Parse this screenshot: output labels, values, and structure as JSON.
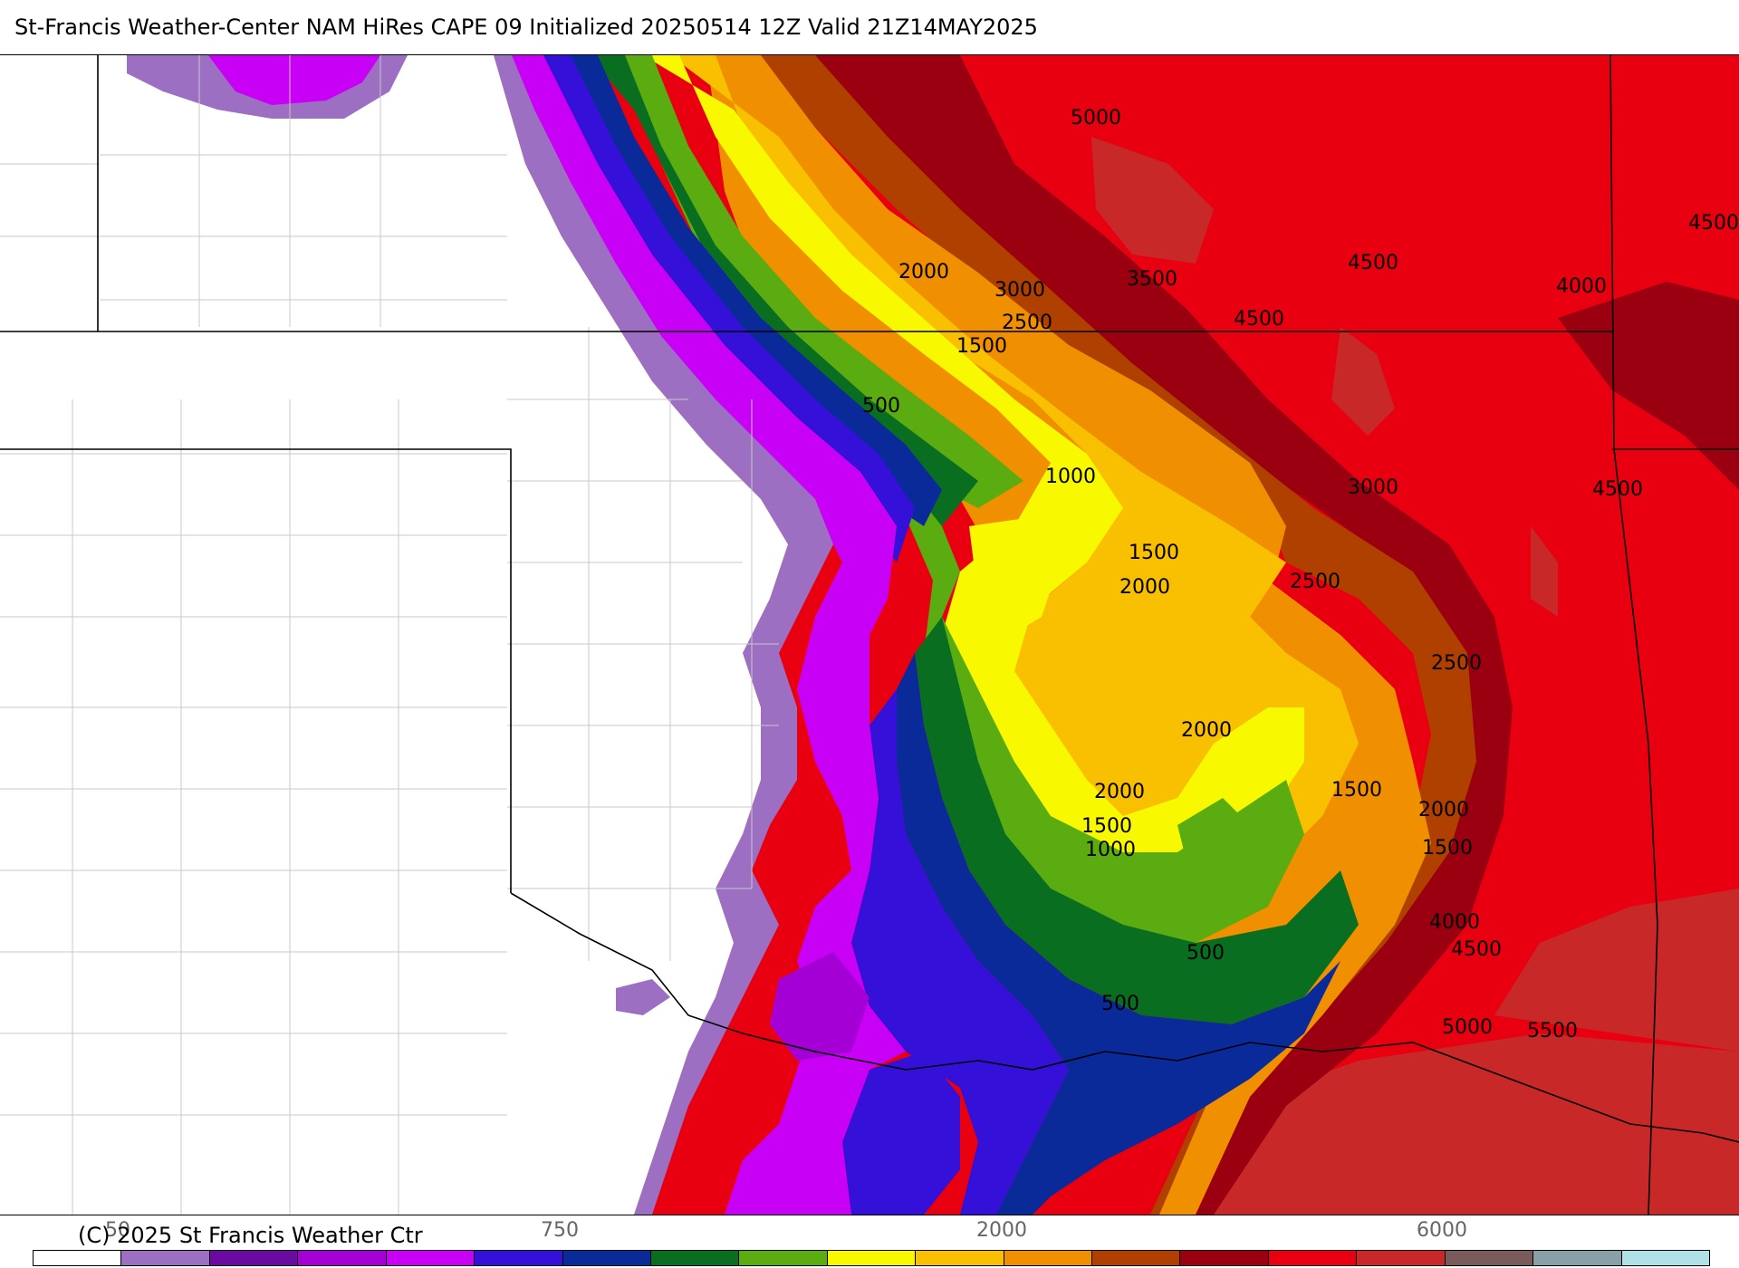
{
  "title": "St-Francis Weather-Center NAM HiRes CAPE  09 Initialized 20250514 12Z Valid 21Z14MAY2025",
  "copyright": "(C) 2025 St Francis Weather Ctr",
  "colorbar": {
    "colors": [
      "#ffffff",
      "#9c6fc2",
      "#6a0aa0",
      "#a400d6",
      "#c800f5",
      "#3410d8",
      "#0a2a9a",
      "#0a6e20",
      "#5aac10",
      "#f8f800",
      "#f8c000",
      "#f09000",
      "#b04000",
      "#9a0010",
      "#e80010",
      "#c82828",
      "#7a5a5a",
      "#8aa0a8",
      "#b0e0e8"
    ],
    "tick_labels": [
      "50",
      "750",
      "2000",
      "6000"
    ]
  },
  "map": {
    "colors": {
      "purple_light": "#9c6fc2",
      "purple_dark": "#6a0aa0",
      "magenta": "#c800f5",
      "violet": "#a400d6",
      "blue": "#3410d8",
      "navy": "#0a2a9a",
      "dark_green": "#0a6e20",
      "green": "#5aac10",
      "yellow": "#f8f800",
      "gold": "#f8c000",
      "orange": "#f09000",
      "brown": "#b04000",
      "dark_red": "#9a0010",
      "red": "#e80010",
      "crimson": "#c82828",
      "border": "#000000",
      "county": "#c8c8c8"
    },
    "contour_labels": [
      {
        "text": "5000"
      },
      {
        "text": "4500"
      },
      {
        "text": "4500"
      },
      {
        "text": "4000"
      },
      {
        "text": "3500"
      },
      {
        "text": "4500"
      },
      {
        "text": "3000"
      },
      {
        "text": "2500"
      },
      {
        "text": "2000"
      },
      {
        "text": "1500"
      },
      {
        "text": "500"
      },
      {
        "text": "1000"
      },
      {
        "text": "1500"
      },
      {
        "text": "2000"
      },
      {
        "text": "3000"
      },
      {
        "text": "4500"
      },
      {
        "text": "2500"
      },
      {
        "text": "2500"
      },
      {
        "text": "2000"
      },
      {
        "text": "2000"
      },
      {
        "text": "1500"
      },
      {
        "text": "2000"
      },
      {
        "text": "1500"
      },
      {
        "text": "1500"
      },
      {
        "text": "1000"
      },
      {
        "text": "4000"
      },
      {
        "text": "4500"
      },
      {
        "text": "500"
      },
      {
        "text": "500"
      },
      {
        "text": "5000"
      },
      {
        "text": "5500"
      }
    ]
  }
}
